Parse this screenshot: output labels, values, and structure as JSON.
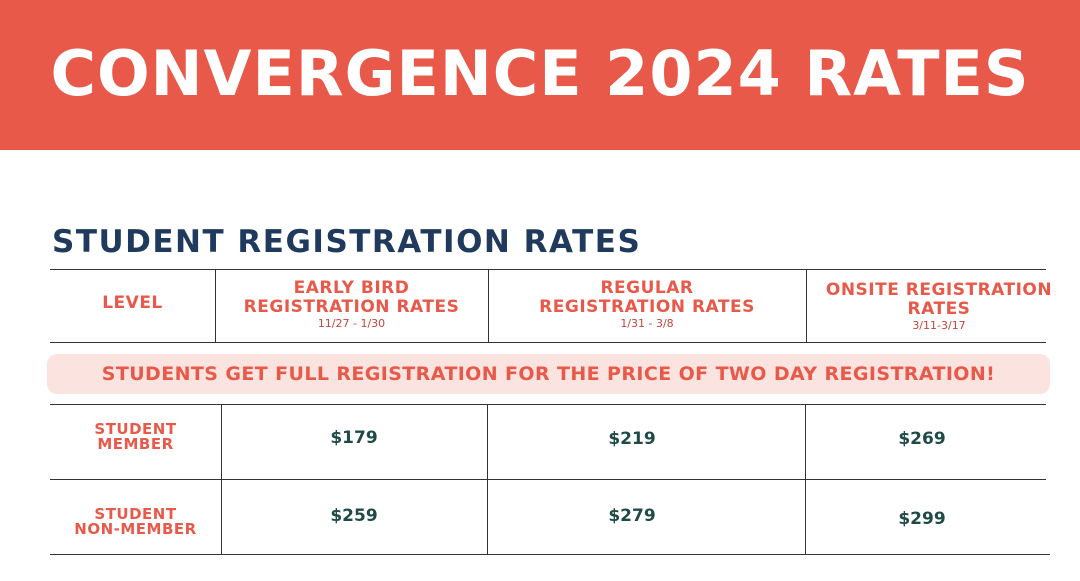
{
  "banner": {
    "title": "CONVERGENCE 2024 RATES",
    "color": "#e8594a"
  },
  "section": {
    "title": "STUDENT REGISTRATION RATES"
  },
  "table": {
    "headers": {
      "level": "LEVEL",
      "early": {
        "line1": "EARLY BIRD",
        "line2": "REGISTRATION RATES",
        "dates": "11/27 - 1/30"
      },
      "regular": {
        "line1": "REGULAR",
        "line2": "REGISTRATION RATES",
        "dates": "1/31 - 3/8"
      },
      "onsite": {
        "line1": "ONSITE REGISTRATION",
        "line2": "RATES",
        "dates": "3/11-3/17"
      }
    },
    "notice": "STUDENTS GET FULL REGISTRATION FOR THE PRICE OF TWO DAY REGISTRATION!",
    "rows": [
      {
        "label1": "STUDENT",
        "label2": "MEMBER",
        "early": "$179",
        "regular": "$219",
        "onsite": "$269"
      },
      {
        "label1": "STUDENT",
        "label2": "NON-MEMBER",
        "early": "$259",
        "regular": "$279",
        "onsite": "$299"
      }
    ]
  }
}
